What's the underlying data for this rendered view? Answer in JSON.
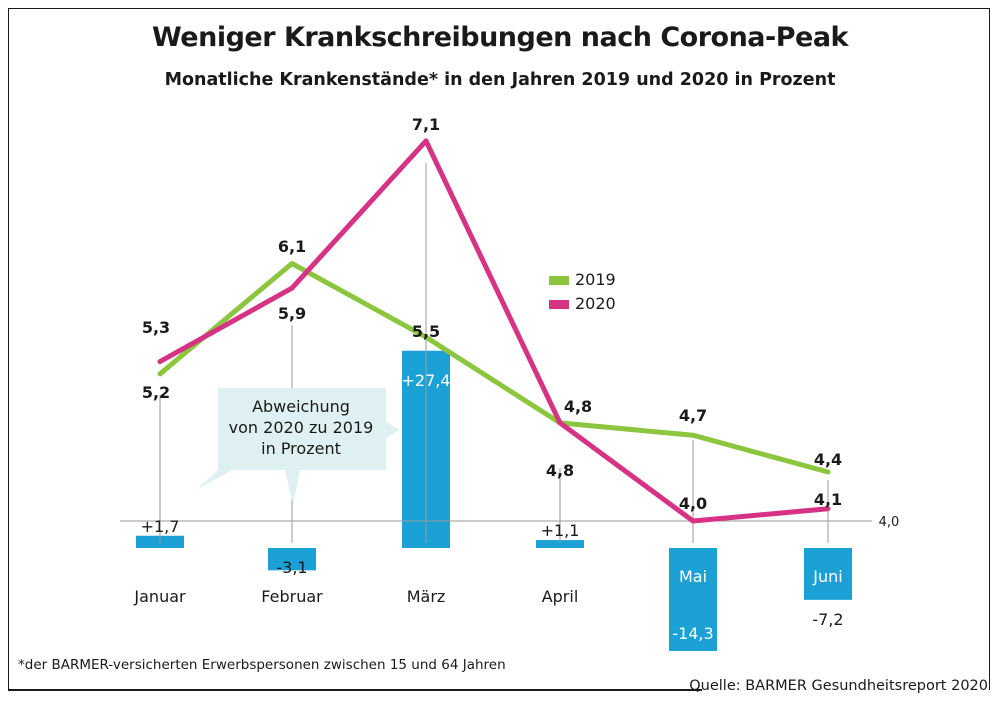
{
  "header": {
    "title": "Weniger Krankschreibungen nach Corona-Peak",
    "subtitle": "Monatliche Krankenstände* in den Jahren 2019 und 2020 in Prozent"
  },
  "footer": {
    "footnote": "*der BARMER-versicherten Erwerbspersonen zwischen 15 und 64 Jahren",
    "source": "Quelle: BARMER Gesundheitsreport 2020"
  },
  "callout": {
    "line1": "Abweichung",
    "line2": "von 2020 zu 2019",
    "line3": "in Prozent"
  },
  "colors": {
    "series_2019": "#8cc63f",
    "series_2020": "#d63384",
    "bars": "#1ba1d6",
    "callout_bg": "#def0f1"
  },
  "chart_data": {
    "type": "line",
    "categories": [
      "Januar",
      "Februar",
      "März",
      "April",
      "Mai",
      "Juni"
    ],
    "series": [
      {
        "name": "2019",
        "values": [
          5.2,
          6.1,
          5.5,
          4.8,
          4.7,
          4.4
        ],
        "labels": [
          "5,2",
          "6,1",
          "5,5",
          "4,8",
          "4,7",
          "4,4"
        ]
      },
      {
        "name": "2020",
        "values": [
          5.3,
          5.9,
          7.1,
          4.8,
          4.0,
          4.1
        ],
        "labels": [
          "5,3",
          "5,9",
          "7,1",
          "4,8",
          "4,0",
          "4,1"
        ]
      }
    ],
    "baseline": {
      "value": 4.0,
      "label": "4,0"
    },
    "deviation_bars": {
      "values": [
        1.7,
        -3.1,
        27.4,
        1.1,
        -14.3,
        -7.2
      ],
      "labels": [
        "+1,7",
        "-3,1",
        "+27,4",
        "+1,1",
        "-14,3",
        "-7,2"
      ]
    },
    "legend": [
      "2019",
      "2020"
    ],
    "legend_position": "right-center"
  }
}
